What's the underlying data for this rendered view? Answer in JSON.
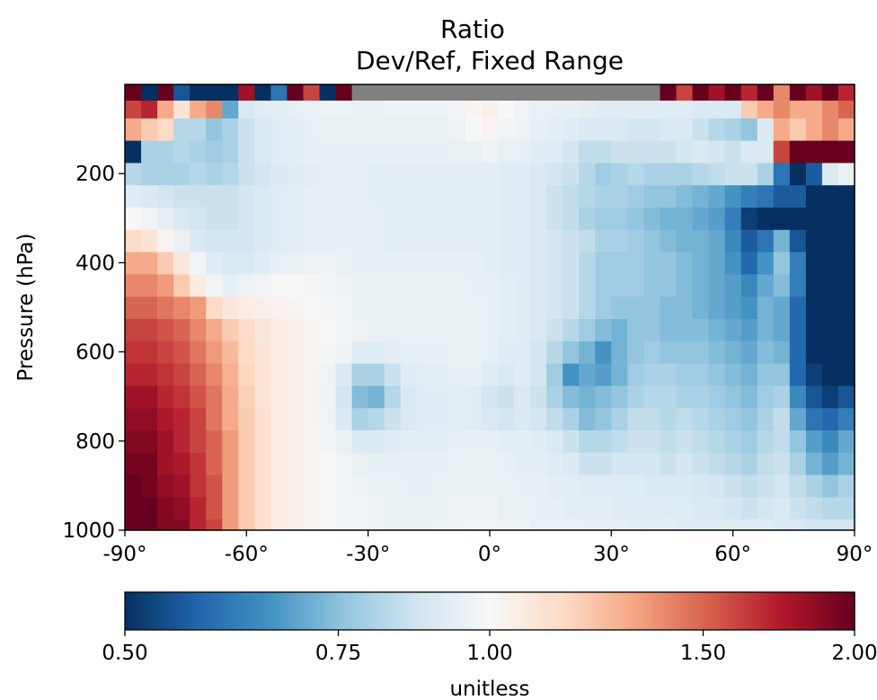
{
  "chart_data": {
    "type": "heatmap",
    "title": "Ratio",
    "subtitle": "Dev/Ref, Fixed Range",
    "ylabel": "Pressure (hPa)",
    "xlabel": "",
    "xlim": [
      -90,
      90
    ],
    "ylim": [
      1000,
      0
    ],
    "x_ticks": [
      -90,
      -60,
      -30,
      0,
      30,
      60,
      90
    ],
    "x_tick_labels": [
      "-90°",
      "-60°",
      "-30°",
      "0°",
      "30°",
      "60°",
      "90°"
    ],
    "y_ticks": [
      200,
      400,
      600,
      800,
      1000
    ],
    "y_tick_labels": [
      "200",
      "400",
      "600",
      "800",
      "1000"
    ],
    "grid": false,
    "colormap": "RdBu_r",
    "missing_color": "#808080",
    "x_centers_deg": [
      -88,
      -84,
      -80,
      -76,
      -72,
      -68,
      -64,
      -60,
      -56,
      -52,
      -48,
      -44,
      -40,
      -36,
      -32,
      -28,
      -24,
      -20,
      -16,
      -12,
      -8,
      -4,
      0,
      4,
      8,
      12,
      16,
      20,
      24,
      28,
      32,
      36,
      40,
      44,
      48,
      52,
      56,
      60,
      64,
      68,
      72,
      76,
      80,
      84,
      88
    ],
    "pressure_rows_hPa": [
      1000,
      950,
      900,
      850,
      800,
      750,
      700,
      650,
      600,
      550,
      500,
      450,
      400,
      350,
      300,
      250,
      200,
      150,
      100,
      50,
      20
    ],
    "ratio_values": [
      [
        2.0,
        2.0,
        1.9,
        1.9,
        1.7,
        1.6,
        1.35,
        1.2,
        1.12,
        1.06,
        1.04,
        1.02,
        1.0,
        0.98,
        0.97,
        0.96,
        0.95,
        0.95,
        0.95,
        0.96,
        0.96,
        0.97,
        0.97,
        0.96,
        0.96,
        0.95,
        0.95,
        0.95,
        0.94,
        0.94,
        0.94,
        0.93,
        0.93,
        0.93,
        0.92,
        0.92,
        0.92,
        0.92,
        0.92,
        0.92,
        0.9,
        0.9,
        0.88,
        0.88,
        0.88
      ],
      [
        2.0,
        2.0,
        1.9,
        1.85,
        1.7,
        1.55,
        1.35,
        1.2,
        1.12,
        1.06,
        1.04,
        1.02,
        1.0,
        0.98,
        0.97,
        0.96,
        0.95,
        0.95,
        0.95,
        0.95,
        0.96,
        0.96,
        0.96,
        0.95,
        0.95,
        0.94,
        0.94,
        0.93,
        0.93,
        0.93,
        0.92,
        0.92,
        0.92,
        0.91,
        0.91,
        0.9,
        0.9,
        0.88,
        0.86,
        0.88,
        0.9,
        0.86,
        0.84,
        0.82,
        0.82
      ],
      [
        2.0,
        1.95,
        1.85,
        1.8,
        1.65,
        1.55,
        1.35,
        1.2,
        1.12,
        1.06,
        1.04,
        1.02,
        1.0,
        0.98,
        0.96,
        0.95,
        0.95,
        0.94,
        0.94,
        0.95,
        0.95,
        0.95,
        0.95,
        0.95,
        0.94,
        0.94,
        0.93,
        0.93,
        0.92,
        0.92,
        0.91,
        0.91,
        0.9,
        0.9,
        0.9,
        0.89,
        0.88,
        0.86,
        0.84,
        0.86,
        0.88,
        0.84,
        0.8,
        0.76,
        0.8
      ],
      [
        1.95,
        1.95,
        1.8,
        1.75,
        1.65,
        1.5,
        1.35,
        1.2,
        1.12,
        1.06,
        1.04,
        1.02,
        1.0,
        0.97,
        0.95,
        0.94,
        0.94,
        0.94,
        0.94,
        0.94,
        0.95,
        0.95,
        0.95,
        0.94,
        0.93,
        0.93,
        0.92,
        0.9,
        0.86,
        0.86,
        0.88,
        0.88,
        0.88,
        0.86,
        0.88,
        0.86,
        0.84,
        0.82,
        0.8,
        0.84,
        0.86,
        0.8,
        0.72,
        0.68,
        0.72
      ],
      [
        1.9,
        1.9,
        1.8,
        1.7,
        1.6,
        1.5,
        1.35,
        1.2,
        1.12,
        1.06,
        1.04,
        1.02,
        0.98,
        0.95,
        0.9,
        0.9,
        0.92,
        0.93,
        0.93,
        0.93,
        0.94,
        0.94,
        0.94,
        0.93,
        0.93,
        0.92,
        0.9,
        0.86,
        0.82,
        0.82,
        0.84,
        0.86,
        0.86,
        0.84,
        0.86,
        0.84,
        0.82,
        0.8,
        0.78,
        0.82,
        0.84,
        0.76,
        0.68,
        0.64,
        0.7
      ],
      [
        1.85,
        1.85,
        1.75,
        1.7,
        1.6,
        1.45,
        1.3,
        1.2,
        1.12,
        1.06,
        1.04,
        1.02,
        0.97,
        0.9,
        0.8,
        0.82,
        0.86,
        0.9,
        0.92,
        0.92,
        0.93,
        0.92,
        0.9,
        0.88,
        0.9,
        0.88,
        0.84,
        0.8,
        0.74,
        0.76,
        0.8,
        0.84,
        0.84,
        0.82,
        0.84,
        0.82,
        0.8,
        0.78,
        0.76,
        0.8,
        0.84,
        0.7,
        0.6,
        0.58,
        0.62
      ],
      [
        1.8,
        1.8,
        1.7,
        1.65,
        1.55,
        1.45,
        1.3,
        1.18,
        1.1,
        1.06,
        1.04,
        1.02,
        0.96,
        0.88,
        0.74,
        0.72,
        0.82,
        0.9,
        0.92,
        0.92,
        0.93,
        0.92,
        0.88,
        0.86,
        0.9,
        0.86,
        0.8,
        0.74,
        0.72,
        0.74,
        0.76,
        0.8,
        0.82,
        0.82,
        0.8,
        0.8,
        0.78,
        0.76,
        0.74,
        0.78,
        0.8,
        0.64,
        0.55,
        0.52,
        0.55
      ],
      [
        1.7,
        1.7,
        1.65,
        1.6,
        1.5,
        1.4,
        1.28,
        1.16,
        1.1,
        1.06,
        1.04,
        1.02,
        0.97,
        0.9,
        0.8,
        0.8,
        0.86,
        0.92,
        0.93,
        0.93,
        0.94,
        0.94,
        0.92,
        0.9,
        0.92,
        0.88,
        0.78,
        0.66,
        0.7,
        0.68,
        0.72,
        0.78,
        0.8,
        0.8,
        0.78,
        0.78,
        0.76,
        0.74,
        0.72,
        0.76,
        0.76,
        0.58,
        0.52,
        0.5,
        0.5
      ],
      [
        1.65,
        1.65,
        1.6,
        1.55,
        1.45,
        1.35,
        1.25,
        1.15,
        1.1,
        1.06,
        1.04,
        1.02,
        0.99,
        0.96,
        0.92,
        0.92,
        0.93,
        0.94,
        0.94,
        0.94,
        0.95,
        0.95,
        0.94,
        0.92,
        0.92,
        0.88,
        0.82,
        0.76,
        0.72,
        0.66,
        0.72,
        0.76,
        0.78,
        0.76,
        0.76,
        0.76,
        0.74,
        0.72,
        0.7,
        0.74,
        0.72,
        0.58,
        0.5,
        0.5,
        0.5
      ],
      [
        1.6,
        1.6,
        1.55,
        1.5,
        1.4,
        1.3,
        1.2,
        1.14,
        1.08,
        1.06,
        1.04,
        1.02,
        1.0,
        0.98,
        0.96,
        0.95,
        0.95,
        0.95,
        0.95,
        0.95,
        0.95,
        0.95,
        0.94,
        0.93,
        0.92,
        0.9,
        0.86,
        0.82,
        0.78,
        0.74,
        0.72,
        0.76,
        0.76,
        0.74,
        0.74,
        0.74,
        0.72,
        0.7,
        0.68,
        0.72,
        0.7,
        0.58,
        0.5,
        0.5,
        0.5
      ],
      [
        1.5,
        1.5,
        1.45,
        1.4,
        1.35,
        1.15,
        1.08,
        1.06,
        1.04,
        1.03,
        1.02,
        1.0,
        0.99,
        0.97,
        0.95,
        0.95,
        0.95,
        0.95,
        0.95,
        0.95,
        0.95,
        0.95,
        0.94,
        0.93,
        0.92,
        0.9,
        0.88,
        0.86,
        0.82,
        0.78,
        0.76,
        0.76,
        0.76,
        0.74,
        0.74,
        0.72,
        0.7,
        0.68,
        0.66,
        0.72,
        0.7,
        0.58,
        0.5,
        0.5,
        0.5
      ],
      [
        1.4,
        1.4,
        1.35,
        1.2,
        1.06,
        0.98,
        0.94,
        0.96,
        0.98,
        1.0,
        1.0,
        0.99,
        0.98,
        0.96,
        0.95,
        0.95,
        0.95,
        0.95,
        0.95,
        0.95,
        0.95,
        0.94,
        0.94,
        0.93,
        0.92,
        0.9,
        0.88,
        0.86,
        0.82,
        0.78,
        0.78,
        0.78,
        0.76,
        0.76,
        0.74,
        0.72,
        0.7,
        0.68,
        0.64,
        0.7,
        0.74,
        0.62,
        0.5,
        0.5,
        0.5
      ],
      [
        1.3,
        1.3,
        1.2,
        1.08,
        0.98,
        0.92,
        0.9,
        0.9,
        0.92,
        0.94,
        0.95,
        0.96,
        0.96,
        0.95,
        0.94,
        0.94,
        0.94,
        0.94,
        0.94,
        0.94,
        0.94,
        0.94,
        0.93,
        0.92,
        0.92,
        0.9,
        0.88,
        0.86,
        0.82,
        0.78,
        0.78,
        0.78,
        0.76,
        0.76,
        0.74,
        0.72,
        0.7,
        0.66,
        0.58,
        0.66,
        0.76,
        0.62,
        0.5,
        0.5,
        0.5
      ],
      [
        1.15,
        1.1,
        1.02,
        0.95,
        0.9,
        0.88,
        0.88,
        0.88,
        0.9,
        0.92,
        0.93,
        0.94,
        0.94,
        0.94,
        0.94,
        0.94,
        0.93,
        0.93,
        0.93,
        0.93,
        0.93,
        0.93,
        0.93,
        0.92,
        0.92,
        0.9,
        0.88,
        0.86,
        0.84,
        0.8,
        0.8,
        0.78,
        0.76,
        0.74,
        0.72,
        0.72,
        0.7,
        0.64,
        0.56,
        0.6,
        0.72,
        0.55,
        0.5,
        0.5,
        0.5
      ],
      [
        1.0,
        0.98,
        0.94,
        0.9,
        0.88,
        0.86,
        0.86,
        0.88,
        0.9,
        0.92,
        0.93,
        0.94,
        0.94,
        0.94,
        0.94,
        0.94,
        0.93,
        0.93,
        0.93,
        0.93,
        0.93,
        0.93,
        0.93,
        0.92,
        0.92,
        0.9,
        0.86,
        0.84,
        0.8,
        0.78,
        0.78,
        0.76,
        0.74,
        0.72,
        0.72,
        0.7,
        0.68,
        0.62,
        0.52,
        0.5,
        0.5,
        0.5,
        0.5,
        0.5,
        0.5
      ],
      [
        0.92,
        0.9,
        0.88,
        0.86,
        0.86,
        0.86,
        0.86,
        0.88,
        0.9,
        0.92,
        0.93,
        0.94,
        0.94,
        0.94,
        0.94,
        0.93,
        0.93,
        0.93,
        0.93,
        0.93,
        0.93,
        0.93,
        0.93,
        0.92,
        0.92,
        0.9,
        0.86,
        0.84,
        0.82,
        0.8,
        0.8,
        0.78,
        0.76,
        0.76,
        0.74,
        0.72,
        0.7,
        0.66,
        0.62,
        0.6,
        0.56,
        0.56,
        0.5,
        0.5,
        0.5
      ],
      [
        0.82,
        0.8,
        0.8,
        0.8,
        0.82,
        0.8,
        0.82,
        0.86,
        0.88,
        0.9,
        0.92,
        0.93,
        0.94,
        0.94,
        0.94,
        0.93,
        0.93,
        0.93,
        0.93,
        0.93,
        0.93,
        0.93,
        0.93,
        0.92,
        0.92,
        0.9,
        0.88,
        0.86,
        0.82,
        0.78,
        0.8,
        0.82,
        0.8,
        0.8,
        0.8,
        0.82,
        0.84,
        0.86,
        0.86,
        0.8,
        0.6,
        0.5,
        0.56,
        0.9,
        0.95
      ],
      [
        0.5,
        0.8,
        0.8,
        0.82,
        0.8,
        0.78,
        0.8,
        0.86,
        0.9,
        0.92,
        0.93,
        0.94,
        0.94,
        0.94,
        0.94,
        0.94,
        0.94,
        0.94,
        0.94,
        0.94,
        0.95,
        0.95,
        0.96,
        0.95,
        0.94,
        0.92,
        0.92,
        0.88,
        0.84,
        0.84,
        0.86,
        0.86,
        0.86,
        0.86,
        0.88,
        0.9,
        0.88,
        0.86,
        0.9,
        0.9,
        1.6,
        2.0,
        2.0,
        2.0,
        2.0
      ],
      [
        1.3,
        1.2,
        1.15,
        0.82,
        0.82,
        0.76,
        0.8,
        0.86,
        0.9,
        0.92,
        0.93,
        0.94,
        0.95,
        0.95,
        0.95,
        0.95,
        0.95,
        0.95,
        0.95,
        0.95,
        0.96,
        1.0,
        1.02,
        0.98,
        0.96,
        0.94,
        0.93,
        0.92,
        0.9,
        0.9,
        0.9,
        0.88,
        0.88,
        0.9,
        0.9,
        0.86,
        0.82,
        0.8,
        0.76,
        0.9,
        1.3,
        1.2,
        1.3,
        1.4,
        1.3
      ],
      [
        1.6,
        1.7,
        1.3,
        1.1,
        1.3,
        1.4,
        0.7,
        0.9,
        0.92,
        0.93,
        0.94,
        0.95,
        0.96,
        0.96,
        0.95,
        0.95,
        0.96,
        0.96,
        0.96,
        0.96,
        0.97,
        1.02,
        1.04,
        1.0,
        0.97,
        0.95,
        0.94,
        0.94,
        0.93,
        0.92,
        0.92,
        0.92,
        0.92,
        0.92,
        0.92,
        0.9,
        0.9,
        0.9,
        1.2,
        1.3,
        1.4,
        1.3,
        1.3,
        1.4,
        1.5
      ],
      [
        2.0,
        0.5,
        2.0,
        0.55,
        0.5,
        0.5,
        0.5,
        1.8,
        0.5,
        0.6,
        2.0,
        1.6,
        0.5,
        2.0,
        null,
        null,
        null,
        null,
        null,
        null,
        null,
        null,
        null,
        null,
        null,
        null,
        null,
        null,
        null,
        null,
        null,
        null,
        null,
        2.0,
        1.6,
        2.0,
        1.8,
        2.0,
        1.7,
        2.0,
        1.4,
        2.0,
        1.8,
        2.0,
        1.7
      ]
    ],
    "colorbar": {
      "label": "unitless",
      "ticks": [
        0.5,
        0.75,
        1.0,
        1.5,
        2.0
      ],
      "tick_labels": [
        "0.50",
        "0.75",
        "1.00",
        "1.50",
        "2.00"
      ],
      "scale": "log",
      "range": [
        0.5,
        2.0
      ]
    }
  }
}
